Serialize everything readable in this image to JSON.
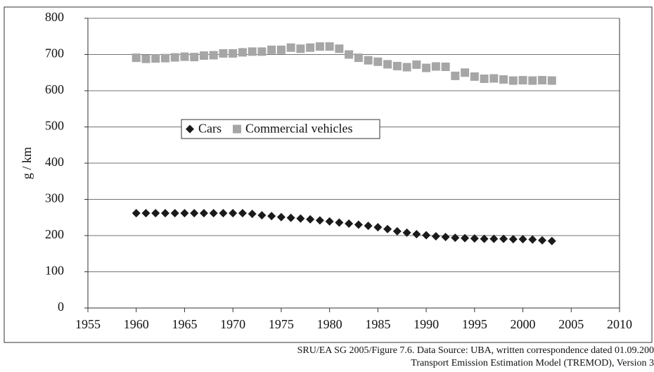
{
  "chart_data": {
    "type": "scatter",
    "ylabel": "g / km",
    "x": [
      1960,
      1961,
      1962,
      1963,
      1964,
      1965,
      1966,
      1967,
      1968,
      1969,
      1970,
      1971,
      1972,
      1973,
      1974,
      1975,
      1976,
      1977,
      1978,
      1979,
      1980,
      1981,
      1982,
      1983,
      1984,
      1985,
      1986,
      1987,
      1988,
      1989,
      1990,
      1991,
      1992,
      1993,
      1994,
      1995,
      1996,
      1997,
      1998,
      1999,
      2000,
      2001,
      2002,
      2003
    ],
    "series": [
      {
        "name": "Cars",
        "color": "#1a1a1a",
        "marker": "diamond",
        "values": [
          262,
          262,
          262,
          262,
          262,
          262,
          262,
          262,
          262,
          262,
          262,
          262,
          260,
          256,
          254,
          251,
          249,
          247,
          245,
          242,
          239,
          236,
          233,
          230,
          227,
          223,
          218,
          212,
          208,
          204,
          201,
          198,
          196,
          194,
          193,
          192,
          191,
          191,
          191,
          190,
          190,
          189,
          187,
          185
        ]
      },
      {
        "name": "Commercial vehicles",
        "color": "#a6a6a6",
        "marker": "square",
        "values": [
          691,
          688,
          689,
          690,
          692,
          694,
          693,
          697,
          698,
          703,
          703,
          706,
          708,
          708,
          713,
          713,
          719,
          716,
          719,
          722,
          722,
          716,
          700,
          691,
          684,
          680,
          673,
          668,
          665,
          672,
          663,
          667,
          666,
          641,
          650,
          639,
          633,
          634,
          631,
          628,
          629,
          628,
          629,
          628
        ]
      }
    ],
    "xlim": [
      1955,
      2010
    ],
    "xticks": [
      1955,
      1960,
      1965,
      1970,
      1975,
      1980,
      1985,
      1990,
      1995,
      2000,
      2005,
      2010
    ],
    "ylim": [
      0,
      800
    ],
    "yticks": [
      0,
      100,
      200,
      300,
      400,
      500,
      600,
      700,
      800
    ],
    "grid": true,
    "legend": "center-left",
    "source": [
      "SRU/EA SG 2005/Figure 7.6. Data Source: UBA, written correspondence dated 01.09.200",
      "Transport Emission Estimation Model (TREMOD), Version 3"
    ]
  }
}
